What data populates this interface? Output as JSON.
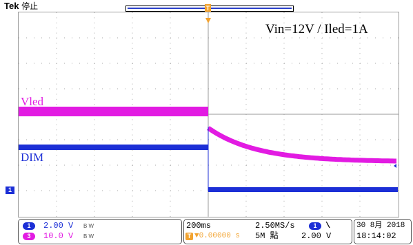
{
  "header": {
    "brand": "Tek",
    "acquisition_state": "停止",
    "trigger_marker_top": "T"
  },
  "annotations": {
    "title": "Vin=12V / Iled=1A",
    "vled_label": "Vled",
    "dim_label": "DIM"
  },
  "markers": {
    "ch1_ground": "1"
  },
  "status": {
    "ch1": {
      "badge": "1",
      "scale": "2.00 V",
      "bw": "B W",
      "color": "#1c2fd6"
    },
    "ch3": {
      "badge": "3",
      "scale": "10.0 V",
      "bw": "B W",
      "color": "#e21be2"
    },
    "timebase": "200ms",
    "trigger_position": "▼0.00000 s",
    "trigger_icon": "T",
    "sample_rate": "2.50MS/s",
    "record_length": "5M 點",
    "trigger_channel_badge": "1",
    "trigger_slope": "\\",
    "trigger_level": "2.00 V",
    "date": "30 8月  2018",
    "time": "18:14:02"
  },
  "colors": {
    "ch1": "#1c2fd6",
    "ch3": "#e21be2",
    "trigger": "#f2a330"
  }
}
